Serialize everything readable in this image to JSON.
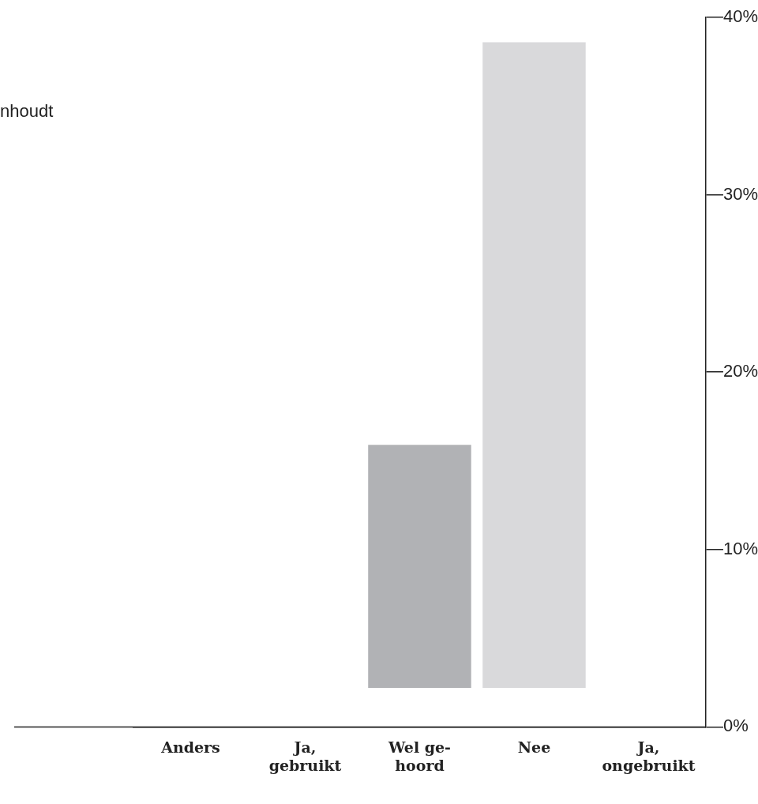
{
  "chart_data": {
    "type": "bar",
    "categories": [
      "Anders",
      "Ja,\ngebruikt",
      "Wel ge-\nhoord",
      "Nee",
      "Ja,\nongebruikt"
    ],
    "values": [
      null,
      null,
      13.7,
      36.4,
      null
    ],
    "base": [
      null,
      null,
      2.2,
      2.2,
      null
    ],
    "colors": [
      "#b1b2b5",
      "#b1b2b5",
      "#b1b2b5",
      "#d9d9db",
      "#b1b2b5"
    ],
    "ylim": [
      0,
      40
    ],
    "yticks": [
      {
        "value": 0,
        "label": "0%"
      },
      {
        "value": 10,
        "label": "10%"
      },
      {
        "value": 20,
        "label": "20%"
      },
      {
        "value": 30,
        "label": "30%"
      },
      {
        "value": 40,
        "label": "40%"
      }
    ],
    "grid": false,
    "legend": false,
    "annotations": [
      "nhoudt"
    ]
  }
}
